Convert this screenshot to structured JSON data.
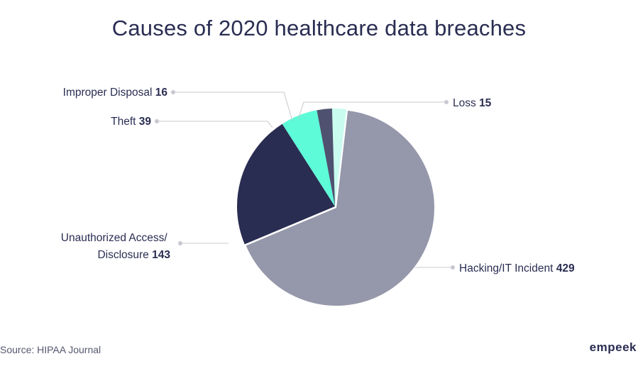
{
  "title": "Causes of 2020 healthcare data breaches",
  "source": "Source: HIPAA Journal",
  "brand": "empeek",
  "chart_data": {
    "type": "pie",
    "title": "Causes of 2020 healthcare data breaches",
    "slices": [
      {
        "label": "Loss",
        "value": 15,
        "color": "#c9fbee"
      },
      {
        "label": "Hacking/IT Incident",
        "value": 429,
        "color": "#9597aa"
      },
      {
        "label": "Unauthorized Access/ Disclosure",
        "value": 143,
        "color": "#2a2d52"
      },
      {
        "label": "Theft",
        "value": 39,
        "color": "#5dfbd8"
      },
      {
        "label": "Improper Disposal",
        "value": 16,
        "color": "#4f5170"
      }
    ]
  }
}
